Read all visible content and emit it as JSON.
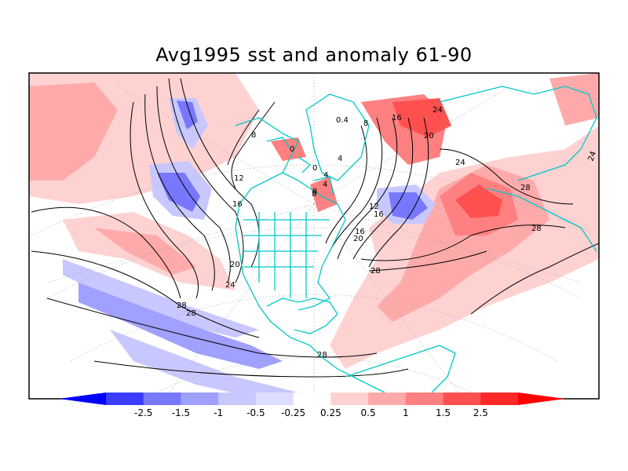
{
  "title": "Avg1995 sst and anomaly 61-90",
  "colorbar": {
    "ticks": [
      "-2.5",
      "-1.5",
      "-1",
      "-0.5",
      "-0.25",
      "0.25",
      "0.5",
      "1",
      "1.5",
      "2.5"
    ],
    "colors": [
      "#0000ff",
      "#3c3cff",
      "#7878ff",
      "#a0a0ff",
      "#c8c8ff",
      "#dcdcff",
      "#ffffff",
      "#ffd2d2",
      "#ffaaaa",
      "#ff8080",
      "#ff5050",
      "#ff2828",
      "#ff0000"
    ]
  },
  "contour_labels": [
    "8",
    "12",
    "16",
    "20",
    "24",
    "28",
    "28",
    "28",
    "0",
    "0",
    "4",
    "8",
    "4",
    "0.4",
    "8",
    "16",
    "24",
    "20",
    "24",
    "28",
    "28",
    "12",
    "16",
    "20",
    "16",
    "28",
    "24",
    "4",
    "8"
  ],
  "colors": {
    "coastline": "#00c8c8",
    "contour": "#000000",
    "grid": "#a0a0a0"
  }
}
